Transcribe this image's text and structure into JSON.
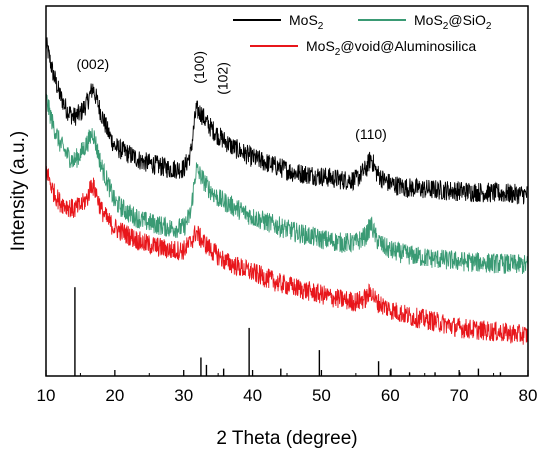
{
  "chart_data": {
    "type": "line",
    "xlabel": "2 Theta (degree)",
    "ylabel": "Intensity (a.u.)",
    "xlim": [
      10,
      80
    ],
    "ylim": [
      0,
      100
    ],
    "xticks": [
      10,
      20,
      30,
      40,
      50,
      60,
      70,
      80
    ],
    "yticks_shown": false,
    "legend_placement": "top-right",
    "series": [
      {
        "name": "MoS2",
        "name_main": "MoS",
        "name_sub": "2",
        "name_tail": "",
        "color": "#000000",
        "x": [
          10,
          11,
          12,
          13,
          14,
          15,
          16,
          16.8,
          18,
          19,
          20,
          22,
          24,
          26,
          28,
          30,
          31,
          31.8,
          32.5,
          33.5,
          35,
          37,
          40,
          43,
          46,
          50,
          53,
          55,
          56.5,
          57.2,
          58,
          59,
          60,
          62,
          65,
          70,
          75,
          80
        ],
        "values": [
          90,
          82,
          76,
          72,
          70,
          71,
          74,
          78,
          71,
          66,
          62,
          60,
          58,
          57,
          56,
          56,
          60,
          72,
          71,
          68,
          65,
          62,
          59,
          57,
          55,
          54,
          53,
          53,
          56,
          59,
          55,
          53,
          52,
          51,
          50.5,
          50,
          49.5,
          49
        ]
      },
      {
        "name": "MoS2@SiO2",
        "name_main": "MoS",
        "name_sub": "2",
        "name_tail": "@SiO",
        "name_sub2": "2",
        "color": "#3a9a74",
        "x": [
          10,
          11,
          12,
          13,
          14,
          15,
          16,
          16.8,
          18,
          19,
          20,
          22,
          24,
          26,
          28,
          30,
          31,
          31.8,
          32.5,
          33.5,
          35,
          37,
          40,
          43,
          46,
          50,
          53,
          55,
          56.5,
          57.2,
          58,
          59,
          60,
          62,
          65,
          70,
          75,
          80
        ],
        "values": [
          75,
          68,
          63,
          60,
          58,
          60,
          63,
          66,
          57,
          52,
          47,
          44,
          42,
          41,
          40,
          40,
          44,
          56,
          54,
          51,
          48,
          46,
          43,
          41,
          39,
          37,
          36,
          36,
          38,
          41,
          37,
          35,
          34,
          33,
          32,
          31,
          30.5,
          30
        ]
      },
      {
        "name": "MoS2@void@Aluminosilica",
        "name_main": "MoS",
        "name_sub": "2",
        "name_tail": "@void@Aluminosilica",
        "color": "#e8161b",
        "x": [
          10,
          11,
          12,
          13,
          14,
          15,
          16,
          16.6,
          17.2,
          18,
          19,
          20,
          22,
          24,
          26,
          28,
          30,
          31,
          31.8,
          32.5,
          34,
          36,
          40,
          44,
          48,
          52,
          55,
          56.5,
          57.2,
          58,
          60,
          63,
          66,
          70,
          75,
          80
        ],
        "values": [
          56,
          50,
          47,
          46,
          45,
          46,
          48,
          52,
          50,
          45,
          42,
          40,
          38,
          36,
          35,
          34,
          34,
          36,
          39,
          37,
          34,
          31,
          28,
          25,
          23,
          21,
          20,
          21,
          23,
          20,
          18,
          16,
          15,
          13,
          12,
          11
        ]
      }
    ],
    "reference_sticks": {
      "color": "#000000",
      "x": [
        14.2,
        32.5,
        33.3,
        35.8,
        39.5,
        44.1,
        49.7,
        58.3,
        60.1,
        62.8,
        66.5,
        70.1,
        72.8,
        76.0
      ],
      "heights": [
        24,
        5,
        3,
        2,
        13,
        2,
        7,
        4,
        2,
        1,
        1,
        1,
        2,
        1
      ]
    },
    "annotations": [
      {
        "text": "(002)",
        "x": 16.8,
        "y": 83
      },
      {
        "text": "(100)",
        "x": 32.2,
        "y": 79,
        "rotate": -90
      },
      {
        "text": "(102)",
        "x": 35.6,
        "y": 76,
        "rotate": -90
      },
      {
        "text": "(110)",
        "x": 57.2,
        "y": 64
      }
    ]
  }
}
